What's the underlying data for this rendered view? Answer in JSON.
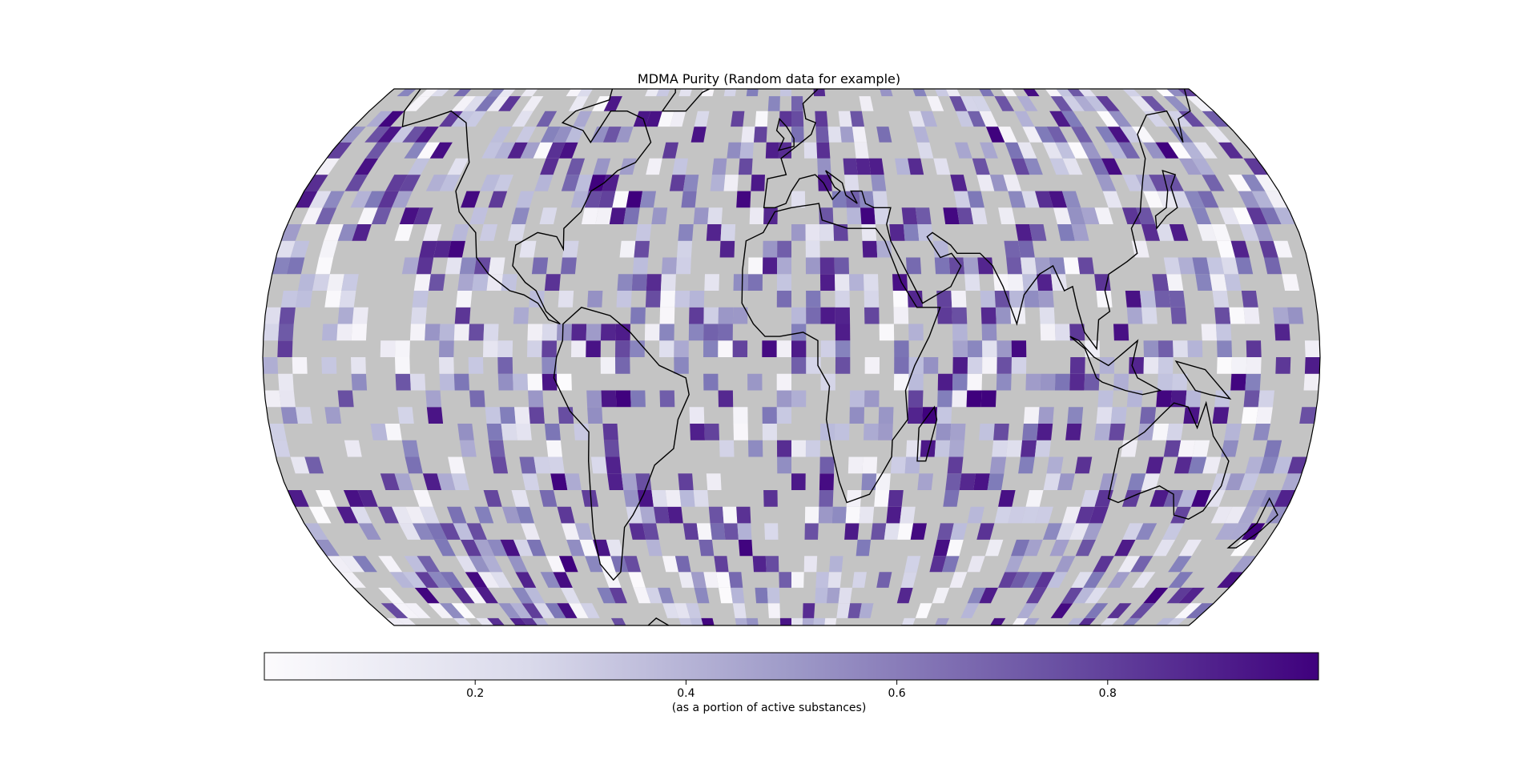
{
  "title": "MDMA Purity (Random data for example)",
  "colorbar": {
    "label": "(as a portion of active substances)",
    "ticks": [
      {
        "value": 0.2,
        "label": "0.2"
      },
      {
        "value": 0.4,
        "label": "0.4"
      },
      {
        "value": 0.6,
        "label": "0.6"
      },
      {
        "value": 0.8,
        "label": "0.8"
      }
    ],
    "vmin": 0.0,
    "vmax": 1.0,
    "colormap": "Purples",
    "low_color": "#fcfbfd",
    "high_color": "#3f007d"
  },
  "map": {
    "projection": "Robinson",
    "ocean_color": "#c4c4c4",
    "coastline_color": "#000000",
    "grid_lon_step_deg": 15,
    "grid_lat_step_deg": 8,
    "nan_fraction": 0.55,
    "seed": 20240511
  },
  "chart_data": {
    "type": "heatmap",
    "title": "MDMA Purity (Random data for example)",
    "colorbar_label": "(as a portion of active substances)",
    "value_range": [
      0.0,
      1.0
    ],
    "colorbar_ticks": [
      0.2,
      0.4,
      0.6,
      0.8
    ],
    "grid": "random lon/lat cells on Robinson projection; about half of cells empty (ocean/gray)"
  }
}
